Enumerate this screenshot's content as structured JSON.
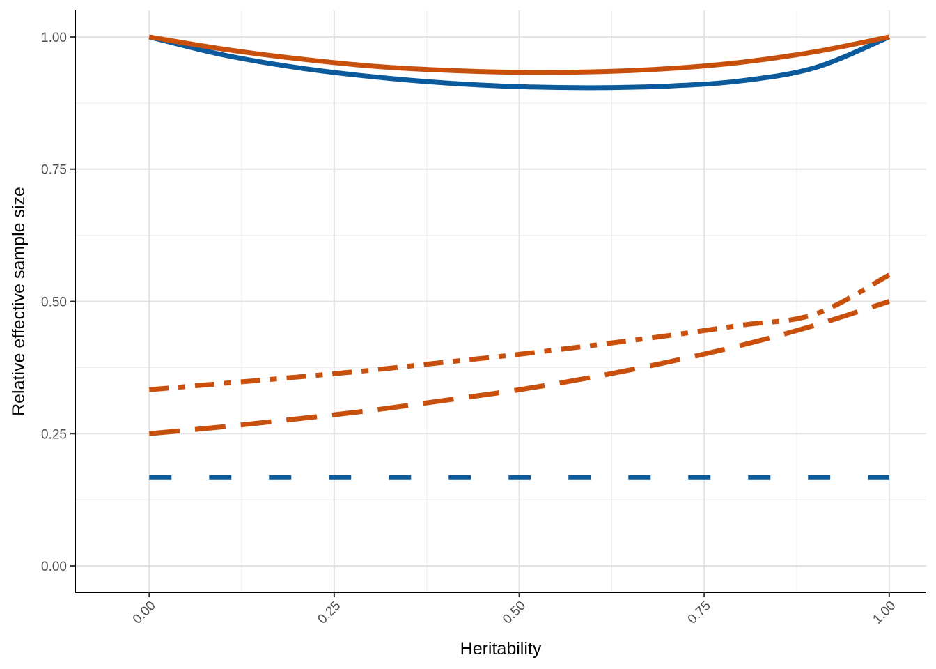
{
  "chart_data": {
    "type": "line",
    "title": "",
    "xlabel": "Heritability",
    "ylabel": "Relative effective sample size",
    "xlim": [
      -0.1,
      1.05
    ],
    "ylim": [
      -0.05,
      1.05
    ],
    "x_ticks": [
      0.0,
      0.25,
      0.5,
      0.75,
      1.0
    ],
    "x_tick_labels": [
      "0.00",
      "0.25",
      "0.50",
      "0.75",
      "1.00"
    ],
    "y_ticks": [
      0.0,
      0.25,
      0.5,
      0.75,
      1.0
    ],
    "y_tick_labels": [
      "0.00",
      "0.25",
      "0.50",
      "0.75",
      "1.00"
    ],
    "grid": true,
    "legend": "none",
    "x": [
      0.0,
      0.1,
      0.2,
      0.3,
      0.4,
      0.5,
      0.6,
      0.7,
      0.8,
      0.9,
      1.0
    ],
    "series": [
      {
        "color": "#0a5a9c",
        "linestyle": "solid",
        "values": [
          1.0,
          0.966,
          0.942,
          0.925,
          0.913,
          0.906,
          0.904,
          0.907,
          0.917,
          0.942,
          1.0
        ]
      },
      {
        "color": "#c9500c",
        "linestyle": "solid",
        "values": [
          1.0,
          0.977,
          0.959,
          0.945,
          0.937,
          0.933,
          0.934,
          0.94,
          0.952,
          0.972,
          1.0
        ]
      },
      {
        "color": "#c9500c",
        "linestyle": "dotdash",
        "values": [
          0.333,
          0.345,
          0.357,
          0.37,
          0.385,
          0.4,
          0.417,
          0.435,
          0.455,
          0.476,
          0.55
        ]
      },
      {
        "color": "#c9500c",
        "linestyle": "longdash",
        "values": [
          0.25,
          0.263,
          0.278,
          0.294,
          0.313,
          0.333,
          0.357,
          0.385,
          0.417,
          0.455,
          0.5
        ]
      },
      {
        "color": "#0a5a9c",
        "linestyle": "dashed",
        "values": [
          0.167,
          0.167,
          0.167,
          0.167,
          0.167,
          0.167,
          0.167,
          0.167,
          0.167,
          0.167,
          0.167
        ]
      }
    ]
  }
}
